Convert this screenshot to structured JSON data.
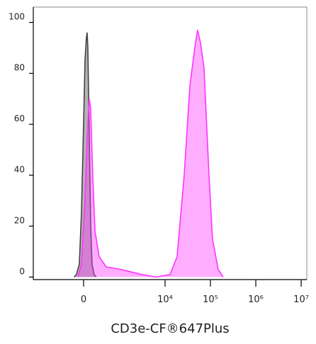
{
  "chart_data": {
    "type": "histogram-overlay",
    "x_label": "CD3e-CF®647Plus",
    "xlim": [
      -2040,
      13300000
    ],
    "xticks": [
      0,
      {
        "value": 10000,
        "label": "10⁴"
      },
      {
        "value": 100000,
        "label": "10⁵"
      },
      {
        "value": 1000000,
        "label": "10⁶"
      },
      {
        "value": 10000000,
        "label": "10⁷"
      }
    ],
    "ylim": [
      -1,
      106
    ],
    "yticks": [
      0,
      20,
      40,
      60,
      80,
      100
    ],
    "series": [
      {
        "color": "#444444",
        "x": [
          -160,
          -118,
          -70,
          -35,
          0,
          23,
          46,
          58,
          70,
          94,
          118,
          142,
          180,
          220
        ],
        "values": [
          0,
          1,
          5,
          25,
          60,
          85,
          94,
          96,
          90,
          55,
          20,
          5,
          1,
          0
        ]
      },
      {
        "color": "#ff33ff",
        "x": [
          -94,
          -35,
          23,
          58,
          94,
          118,
          154,
          196,
          280,
          453,
          1030,
          1770,
          3050,
          6300,
          12900,
          18400,
          26400,
          35200,
          45200,
          52000,
          60400,
          72300,
          93000,
          111000,
          148000,
          191000
        ],
        "values": [
          0,
          5,
          30,
          55,
          70,
          66,
          40,
          18,
          8,
          4,
          3,
          2,
          1,
          0,
          1,
          8,
          40,
          75,
          90,
          97,
          92,
          82,
          40,
          15,
          3,
          0
        ]
      }
    ]
  }
}
